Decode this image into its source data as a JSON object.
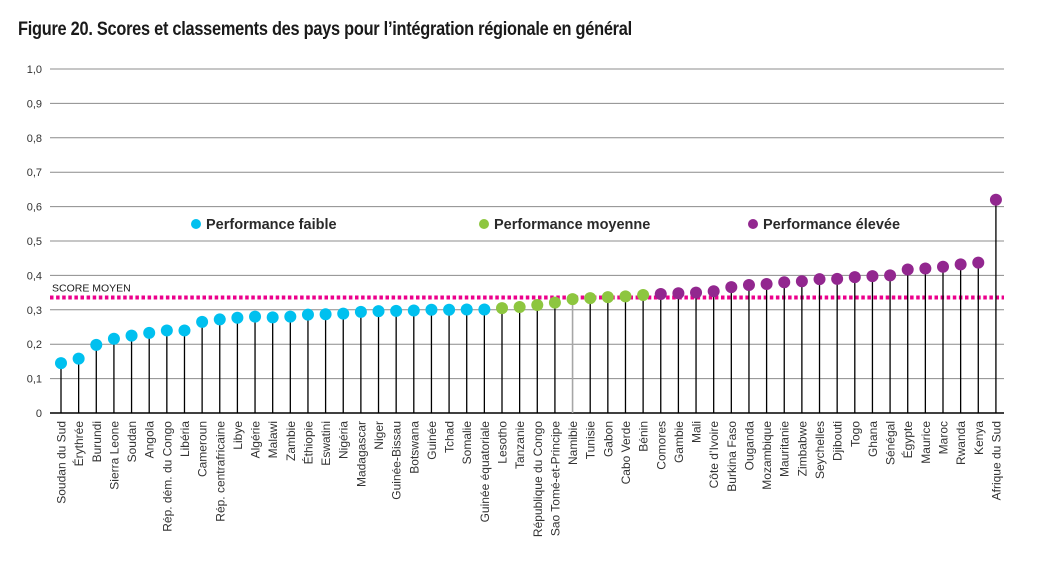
{
  "figure": {
    "title": "Figure 20. Scores et classements des pays pour l’intégration régionale en général"
  },
  "colors": {
    "faible": "#00c0ef",
    "moyenne": "#8dc63f",
    "elevee": "#92278f",
    "average_line": "#ec008c",
    "gridline": "#8c8c8c",
    "stem": "#000000",
    "stem_highlight": "#a6a6a6"
  },
  "chart_data": {
    "type": "lollipop",
    "title": "Figure 20. Scores et classements des pays pour l’intégration régionale en général",
    "xlabel": "",
    "ylabel": "",
    "ylim": [
      0,
      1.0
    ],
    "grid": true,
    "yticks": [
      {
        "value": 0,
        "label": "0"
      },
      {
        "value": 0.1,
        "label": "0,1"
      },
      {
        "value": 0.2,
        "label": "0,2"
      },
      {
        "value": 0.3,
        "label": "0,3"
      },
      {
        "value": 0.4,
        "label": "0,4"
      },
      {
        "value": 0.5,
        "label": "0,5"
      },
      {
        "value": 0.6,
        "label": "0,6"
      },
      {
        "value": 0.7,
        "label": "0,7"
      },
      {
        "value": 0.8,
        "label": "0,8"
      },
      {
        "value": 0.9,
        "label": "0,9"
      },
      {
        "value": 1.0,
        "label": "1,0"
      }
    ],
    "average": {
      "label": "SCORE MOYEN",
      "value": 0.327
    },
    "legend": {
      "placement": "inside-top",
      "entries": [
        {
          "key": "faible",
          "label": "Performance faible"
        },
        {
          "key": "moyenne",
          "label": "Performance moyenne"
        },
        {
          "key": "elevee",
          "label": "Performance élevée"
        }
      ]
    },
    "categories": [
      "Soudan du Sud",
      "Érythrée",
      "Burundi",
      "Sierra Leone",
      "Soudan",
      "Angola",
      "Rép. dém. du Congo",
      "Libéria",
      "Cameroun",
      "Rép. centrafricaine",
      "Libye",
      "Algérie",
      "Malawi",
      "Zambie",
      "Éthiopie",
      "Eswatini",
      "Nigéria",
      "Madagascar",
      "Niger",
      "Guinée-Bissau",
      "Botswana",
      "Guinée",
      "Tchad",
      "Somalie",
      "Guinée équatoriale",
      "Lesotho",
      "Tanzanie",
      "République du Congo",
      "Sao Tomé-et-Principe",
      "Namibie",
      "Tunisie",
      "Gabon",
      "Cabo Verde",
      "Bénin",
      "Comores",
      "Gambie",
      "Mali",
      "Côte d’Ivoire",
      "Burkina Faso",
      "Ouganda",
      "Mozambique",
      "Mauritanie",
      "Zimbabwe",
      "Seychelles",
      "Djibouti",
      "Togo",
      "Ghana",
      "Sénégal",
      "Égypte",
      "Maurice",
      "Maroc",
      "Rwanda",
      "Kenya",
      "Afrique du Sud"
    ],
    "values": [
      0.145,
      0.158,
      0.198,
      0.216,
      0.225,
      0.233,
      0.24,
      0.24,
      0.265,
      0.272,
      0.277,
      0.28,
      0.278,
      0.28,
      0.286,
      0.287,
      0.289,
      0.294,
      0.296,
      0.297,
      0.298,
      0.3,
      0.3,
      0.301,
      0.301,
      0.305,
      0.308,
      0.314,
      0.321,
      0.331,
      0.334,
      0.337,
      0.339,
      0.343,
      0.346,
      0.348,
      0.35,
      0.354,
      0.366,
      0.372,
      0.375,
      0.38,
      0.383,
      0.389,
      0.39,
      0.395,
      0.398,
      0.4,
      0.417,
      0.42,
      0.425,
      0.432,
      0.437,
      0.62
    ],
    "performance": [
      "faible",
      "faible",
      "faible",
      "faible",
      "faible",
      "faible",
      "faible",
      "faible",
      "faible",
      "faible",
      "faible",
      "faible",
      "faible",
      "faible",
      "faible",
      "faible",
      "faible",
      "faible",
      "faible",
      "faible",
      "faible",
      "faible",
      "faible",
      "faible",
      "faible",
      "moyenne",
      "moyenne",
      "moyenne",
      "moyenne",
      "moyenne",
      "moyenne",
      "moyenne",
      "moyenne",
      "moyenne",
      "elevee",
      "elevee",
      "elevee",
      "elevee",
      "elevee",
      "elevee",
      "elevee",
      "elevee",
      "elevee",
      "elevee",
      "elevee",
      "elevee",
      "elevee",
      "elevee",
      "elevee",
      "elevee",
      "elevee",
      "elevee",
      "elevee",
      "elevee"
    ],
    "highlighted_stem": "Namibie"
  }
}
